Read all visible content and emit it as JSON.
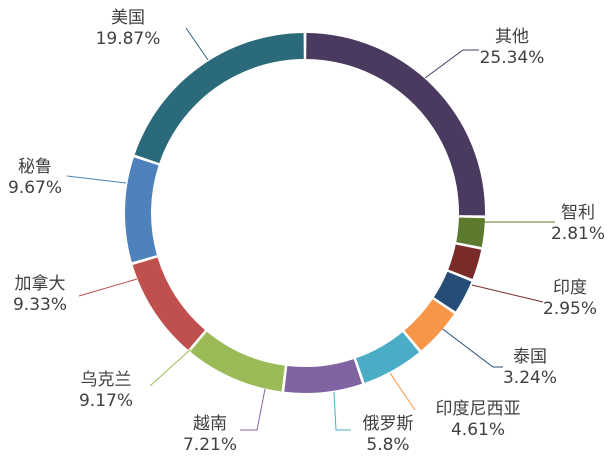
{
  "chart_data": {
    "type": "pie",
    "style": "donut",
    "title": "",
    "slices": [
      {
        "name": "其他",
        "value": 25.34,
        "label": "25.34%",
        "color": "#4a3a60"
      },
      {
        "name": "智利",
        "value": 2.81,
        "label": "2.81%",
        "color": "#5b7a2e"
      },
      {
        "name": "印度",
        "value": 2.95,
        "label": "2.95%",
        "color": "#7a2a28"
      },
      {
        "name": "泰国",
        "value": 3.24,
        "label": "3.24%",
        "color": "#264d78"
      },
      {
        "name": "印度尼西亚",
        "value": 4.61,
        "label": "4.61%",
        "color": "#f79646"
      },
      {
        "name": "俄罗斯",
        "value": 5.8,
        "label": "5.8%",
        "color": "#4bacc6"
      },
      {
        "name": "越南",
        "value": 7.21,
        "label": "7.21%",
        "color": "#8064a2"
      },
      {
        "name": "乌克兰",
        "value": 9.17,
        "label": "9.17%",
        "color": "#9bbb59"
      },
      {
        "name": "加拿大",
        "value": 9.33,
        "label": "9.33%",
        "color": "#c0504d"
      },
      {
        "name": "秘鲁",
        "value": 9.67,
        "label": "9.67%",
        "color": "#4f81bd"
      },
      {
        "name": "美国",
        "value": 19.87,
        "label": "19.87%",
        "color": "#2a6a7a"
      }
    ]
  }
}
